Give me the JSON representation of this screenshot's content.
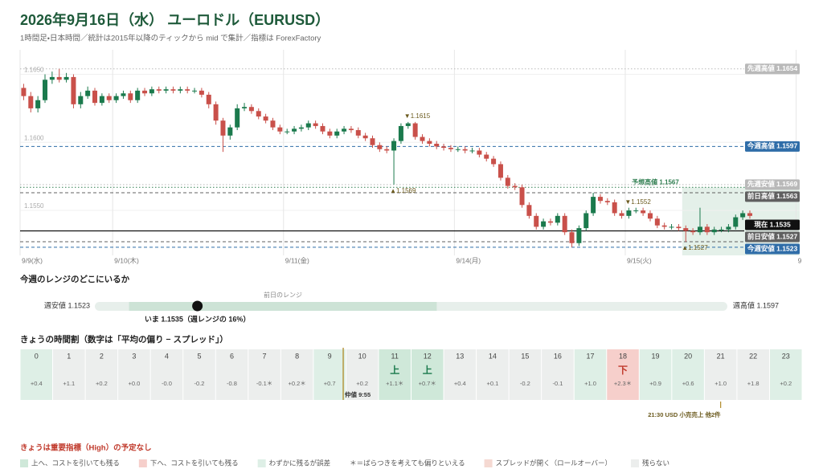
{
  "header": {
    "title": "2026年9月16日（水） ユーロドル（EURUSD）",
    "subtitle": "1時間足・日本時間／統計は2015年以降のティックから mid で集計／指標は ForexFactory"
  },
  "chart_data": {
    "type": "candlestick",
    "up_color": "#1b7a4d",
    "down_color": "#c9504a",
    "xlim": [
      -0.5,
      109
    ],
    "ylim": [
      1.1517,
      1.1668
    ],
    "xticks": [
      {
        "value": -0.5,
        "label": "9/9(水)"
      },
      {
        "value": 12.5,
        "label": "9/10(木)"
      },
      {
        "value": 36.5,
        "label": "9/11(金)"
      },
      {
        "value": 60.5,
        "label": "9/14(月)"
      },
      {
        "value": 84.5,
        "label": "9/15(火)"
      },
      {
        "value": 108.5,
        "label": "9"
      }
    ],
    "yticks": [
      {
        "value": 1.165,
        "label": "1.1650"
      },
      {
        "value": 1.16,
        "label": "1.1600"
      },
      {
        "value": 1.155,
        "label": "1.1550"
      }
    ],
    "candles": [
      [
        1.164,
        1.1643,
        1.1631,
        1.1634
      ],
      [
        1.1634,
        1.1637,
        1.1622,
        1.1625
      ],
      [
        1.1625,
        1.1634,
        1.1622,
        1.1631
      ],
      [
        1.1631,
        1.165,
        1.1629,
        1.1646
      ],
      [
        1.1646,
        1.1652,
        1.1643,
        1.1648
      ],
      [
        1.1648,
        1.1654,
        1.1644,
        1.1646
      ],
      [
        1.1646,
        1.1651,
        1.1644,
        1.1648
      ],
      [
        1.1648,
        1.165,
        1.1625,
        1.1628
      ],
      [
        1.1628,
        1.1637,
        1.1625,
        1.1634
      ],
      [
        1.1634,
        1.1641,
        1.1632,
        1.1638
      ],
      [
        1.1638,
        1.164,
        1.1627,
        1.1629
      ],
      [
        1.1629,
        1.1636,
        1.1627,
        1.1634
      ],
      [
        1.1634,
        1.1636,
        1.1629,
        1.1631
      ],
      [
        1.1631,
        1.1636,
        1.1629,
        1.1634
      ],
      [
        1.1634,
        1.1638,
        1.1632,
        1.1636
      ],
      [
        1.1636,
        1.1638,
        1.1629,
        1.1631
      ],
      [
        1.1631,
        1.164,
        1.1629,
        1.1638
      ],
      [
        1.1638,
        1.164,
        1.1634,
        1.1636
      ],
      [
        1.1636,
        1.1641,
        1.1634,
        1.1639
      ],
      [
        1.1639,
        1.1641,
        1.1636,
        1.1638
      ],
      [
        1.1638,
        1.1641,
        1.1636,
        1.1639
      ],
      [
        1.1639,
        1.1641,
        1.1636,
        1.1638
      ],
      [
        1.1638,
        1.1641,
        1.1636,
        1.1639
      ],
      [
        1.1639,
        1.1641,
        1.1636,
        1.1638
      ],
      [
        1.1638,
        1.164,
        1.1636,
        1.1638
      ],
      [
        1.1638,
        1.164,
        1.1633,
        1.1635
      ],
      [
        1.1635,
        1.1637,
        1.1625,
        1.1628
      ],
      [
        1.1628,
        1.163,
        1.1613,
        1.1616
      ],
      [
        1.1616,
        1.1618,
        1.1593,
        1.1605
      ],
      [
        1.1605,
        1.1613,
        1.1602,
        1.1611
      ],
      [
        1.1611,
        1.1628,
        1.1609,
        1.1625
      ],
      [
        1.1625,
        1.1629,
        1.1623,
        1.1626
      ],
      [
        1.1626,
        1.1628,
        1.1621,
        1.1623
      ],
      [
        1.1623,
        1.1625,
        1.1617,
        1.1619
      ],
      [
        1.1619,
        1.1621,
        1.1614,
        1.1616
      ],
      [
        1.1616,
        1.1618,
        1.1609,
        1.1611
      ],
      [
        1.1611,
        1.1613,
        1.1606,
        1.1608
      ],
      [
        1.1608,
        1.161,
        1.1606,
        1.1608
      ],
      [
        1.1608,
        1.1612,
        1.1606,
        1.161
      ],
      [
        1.161,
        1.1613,
        1.1608,
        1.1611
      ],
      [
        1.1611,
        1.1616,
        1.1609,
        1.1614
      ],
      [
        1.1614,
        1.1616,
        1.161,
        1.1612
      ],
      [
        1.1612,
        1.1614,
        1.1606,
        1.1608
      ],
      [
        1.1608,
        1.161,
        1.1603,
        1.1605
      ],
      [
        1.1605,
        1.161,
        1.1603,
        1.1608
      ],
      [
        1.1608,
        1.1612,
        1.1606,
        1.161
      ],
      [
        1.161,
        1.1612,
        1.1607,
        1.1609
      ],
      [
        1.1609,
        1.1611,
        1.1603,
        1.1605
      ],
      [
        1.1605,
        1.1607,
        1.1601,
        1.1603
      ],
      [
        1.1603,
        1.1605,
        1.1596,
        1.1598
      ],
      [
        1.1598,
        1.16,
        1.1593,
        1.1595
      ],
      [
        1.1595,
        1.1597,
        1.1592,
        1.1594
      ],
      [
        1.1594,
        1.1603,
        1.1569,
        1.1601
      ],
      [
        1.1601,
        1.1614,
        1.1599,
        1.1612
      ],
      [
        1.1612,
        1.1615,
        1.161,
        1.1614
      ],
      [
        1.1614,
        1.1615,
        1.1602,
        1.1604
      ],
      [
        1.1604,
        1.1606,
        1.1599,
        1.1601
      ],
      [
        1.1601,
        1.1603,
        1.1597,
        1.1599
      ],
      [
        1.1599,
        1.1601,
        1.1595,
        1.1597
      ],
      [
        1.1597,
        1.1599,
        1.1594,
        1.1596
      ],
      [
        1.1596,
        1.1598,
        1.1593,
        1.1595
      ],
      [
        1.1595,
        1.1597,
        1.1593,
        1.1595
      ],
      [
        1.1595,
        1.1597,
        1.1592,
        1.1594
      ],
      [
        1.1594,
        1.1596,
        1.1592,
        1.1594
      ],
      [
        1.1594,
        1.1596,
        1.1589,
        1.1591
      ],
      [
        1.1591,
        1.1593,
        1.1586,
        1.1588
      ],
      [
        1.1588,
        1.159,
        1.1582,
        1.1584
      ],
      [
        1.1584,
        1.1586,
        1.1572,
        1.1574
      ],
      [
        1.1574,
        1.1576,
        1.1566,
        1.1568
      ],
      [
        1.1568,
        1.157,
        1.1565,
        1.1567
      ],
      [
        1.1567,
        1.1569,
        1.1552,
        1.1554
      ],
      [
        1.1554,
        1.1556,
        1.1544,
        1.1546
      ],
      [
        1.1546,
        1.1548,
        1.1536,
        1.1538
      ],
      [
        1.1538,
        1.1544,
        1.1536,
        1.1542
      ],
      [
        1.1542,
        1.1544,
        1.1539,
        1.1541
      ],
      [
        1.1541,
        1.1548,
        1.1539,
        1.1546
      ],
      [
        1.1546,
        1.1548,
        1.1532,
        1.1534
      ],
      [
        1.1534,
        1.1536,
        1.1523,
        1.1526
      ],
      [
        1.1526,
        1.1539,
        1.1524,
        1.1537
      ],
      [
        1.1537,
        1.155,
        1.1535,
        1.1548
      ],
      [
        1.1548,
        1.1563,
        1.1546,
        1.156
      ],
      [
        1.156,
        1.1562,
        1.1555,
        1.1557
      ],
      [
        1.1557,
        1.1559,
        1.1554,
        1.1556
      ],
      [
        1.1556,
        1.1558,
        1.1546,
        1.1548
      ],
      [
        1.1548,
        1.155,
        1.1544,
        1.1546
      ],
      [
        1.1546,
        1.1552,
        1.1544,
        1.155
      ],
      [
        1.155,
        1.1552,
        1.1548,
        1.155
      ],
      [
        1.155,
        1.1552,
        1.1546,
        1.1548
      ],
      [
        1.1548,
        1.155,
        1.1542,
        1.1544
      ],
      [
        1.1544,
        1.1546,
        1.1537,
        1.1539
      ],
      [
        1.1539,
        1.1541,
        1.1536,
        1.1538
      ],
      [
        1.1538,
        1.154,
        1.1536,
        1.1538
      ],
      [
        1.1538,
        1.154,
        1.1535,
        1.1537
      ],
      [
        1.1537,
        1.1539,
        1.1527,
        1.1535
      ],
      [
        1.1535,
        1.1537,
        1.1532,
        1.1534
      ],
      [
        1.1534,
        1.1552,
        1.1532,
        1.1538
      ],
      [
        1.1538,
        1.154,
        1.1532,
        1.1534
      ],
      [
        1.1534,
        1.1538,
        1.1532,
        1.1536
      ],
      [
        1.1536,
        1.1538,
        1.1534,
        1.1536
      ],
      [
        1.1536,
        1.154,
        1.1534,
        1.1538
      ],
      [
        1.1538,
        1.1547,
        1.1536,
        1.1545
      ],
      [
        1.1545,
        1.155,
        1.1543,
        1.1548
      ],
      [
        1.1548,
        1.155,
        1.1544,
        1.1546
      ]
    ],
    "levels": [
      {
        "label": "先週高値 1.1654",
        "value": 1.1654,
        "color": "#b9b9b9",
        "style": "dotted"
      },
      {
        "label": "今週高値 1.1597",
        "value": 1.1597,
        "color": "#2f6da8",
        "style": "dashed"
      },
      {
        "label": "先週安値 1.1569",
        "value": 1.1569,
        "color": "#b9b9b9",
        "style": "dotted"
      },
      {
        "label": "前日高値 1.1563",
        "value": 1.1563,
        "color": "#606060",
        "style": "dashed"
      },
      {
        "label": "前日安値 1.1527",
        "value": 1.1527,
        "color": "#606060",
        "style": "dashed"
      },
      {
        "label": "現在 1.1535",
        "value": 1.1535,
        "color": "#111111",
        "style": "solid"
      },
      {
        "label": "今週安値 1.1523",
        "value": 1.1523,
        "color": "#2f6da8",
        "style": "dashed"
      }
    ],
    "forecast": {
      "label": "予想高値 1.1567",
      "value": 1.1567,
      "start": 92.5,
      "color": "#2e7d4f"
    },
    "annotations": [
      {
        "label": "▼1.1615",
        "value": 1.1615,
        "kind": "high"
      },
      {
        "label": "▲1.1569",
        "value": 1.1569,
        "kind": "low"
      },
      {
        "label": "▼1.1552",
        "value": 1.1552,
        "kind": "high"
      },
      {
        "label": "▲1.1527",
        "value": 1.1527,
        "kind": "low"
      }
    ]
  },
  "range": {
    "title": "今週のレンジのどこにいるか",
    "low_label": "週安値 1.1523",
    "low": 1.1523,
    "high_label": "週高値 1.1597",
    "high": 1.1597,
    "prev_label": "前日のレンジ",
    "prev_low": 1.1527,
    "prev_high": 1.1563,
    "current": 1.1535,
    "current_label": "いま 1.1535（週レンジの 16%）"
  },
  "schedule": {
    "title": "きょうの時間割（数字は「平均の偏り − スプレッド」）",
    "classes": {
      "up": "#cfe8d9",
      "down": "#f6cfcb",
      "slight": "#deefe6",
      "spread": "#f5d9d2",
      "none": "#eceeed"
    },
    "cells": [
      {
        "hour": 0,
        "label": "+0.4",
        "value": 0.4,
        "class": "slight"
      },
      {
        "hour": 1,
        "label": "+1.1",
        "value": 1.1,
        "class": "none"
      },
      {
        "hour": 2,
        "label": "+0.2",
        "value": 0.2,
        "class": "none"
      },
      {
        "hour": 3,
        "label": "+0.0",
        "value": 0.0,
        "class": "none"
      },
      {
        "hour": 4,
        "label": "-0.0",
        "value": -0.0,
        "class": "none"
      },
      {
        "hour": 5,
        "label": "-0.2",
        "value": -0.2,
        "class": "none"
      },
      {
        "hour": 6,
        "label": "-0.8",
        "value": -0.8,
        "class": "none"
      },
      {
        "hour": 7,
        "label": "-0.1＊",
        "value": -0.1,
        "class": "none"
      },
      {
        "hour": 8,
        "label": "+0.2＊",
        "value": 0.2,
        "class": "none"
      },
      {
        "hour": 9,
        "label": "+0.7",
        "value": 0.7,
        "class": "slight"
      },
      {
        "hour": 10,
        "label": "+0.2",
        "value": 0.2,
        "class": "none"
      },
      {
        "hour": 11,
        "mark": "上",
        "label": "+1.1＊",
        "value": 1.1,
        "class": "up"
      },
      {
        "hour": 12,
        "mark": "上",
        "label": "+0.7＊",
        "value": 0.7,
        "class": "up"
      },
      {
        "hour": 13,
        "label": "+0.4",
        "value": 0.4,
        "class": "none"
      },
      {
        "hour": 14,
        "label": "+0.1",
        "value": 0.1,
        "class": "none"
      },
      {
        "hour": 15,
        "label": "-0.2",
        "value": -0.2,
        "class": "none"
      },
      {
        "hour": 16,
        "label": "-0.1",
        "value": -0.1,
        "class": "none"
      },
      {
        "hour": 17,
        "label": "+1.0",
        "value": 1.0,
        "class": "slight"
      },
      {
        "hour": 18,
        "mark": "下",
        "label": "+2.3＊",
        "value": 2.3,
        "class": "down"
      },
      {
        "hour": 19,
        "label": "+0.9",
        "value": 0.9,
        "class": "slight"
      },
      {
        "hour": 20,
        "label": "+0.6",
        "value": 0.6,
        "class": "slight"
      },
      {
        "hour": 21,
        "label": "+1.0",
        "value": 1.0,
        "class": "none"
      },
      {
        "hour": 22,
        "label": "+1.8",
        "value": 1.8,
        "class": "none"
      },
      {
        "hour": 23,
        "label": "+0.2",
        "value": 0.2,
        "class": "slight"
      }
    ],
    "markers": [
      {
        "label": "仲値 9:55",
        "hour": 9,
        "minute": 55,
        "place": "inside"
      },
      {
        "label": "21:30 USD 小売売上 他2件",
        "hour": 21,
        "minute": 30,
        "place": "below"
      }
    ]
  },
  "footer": {
    "notice": "きょうは重要指標（High）の予定なし",
    "legend": [
      {
        "label": "上へ、コストを引いても残る",
        "class": "up"
      },
      {
        "label": "下へ、コストを引いても残る",
        "class": "down"
      },
      {
        "label": "わずかに残るが誤差",
        "class": "slight"
      },
      {
        "label": "＊＝ばらつきを考えても偏りといえる"
      },
      {
        "label": "スプレッドが開く（ロールオーバー）",
        "class": "spread"
      },
      {
        "label": "残らない",
        "class": "none"
      }
    ]
  }
}
